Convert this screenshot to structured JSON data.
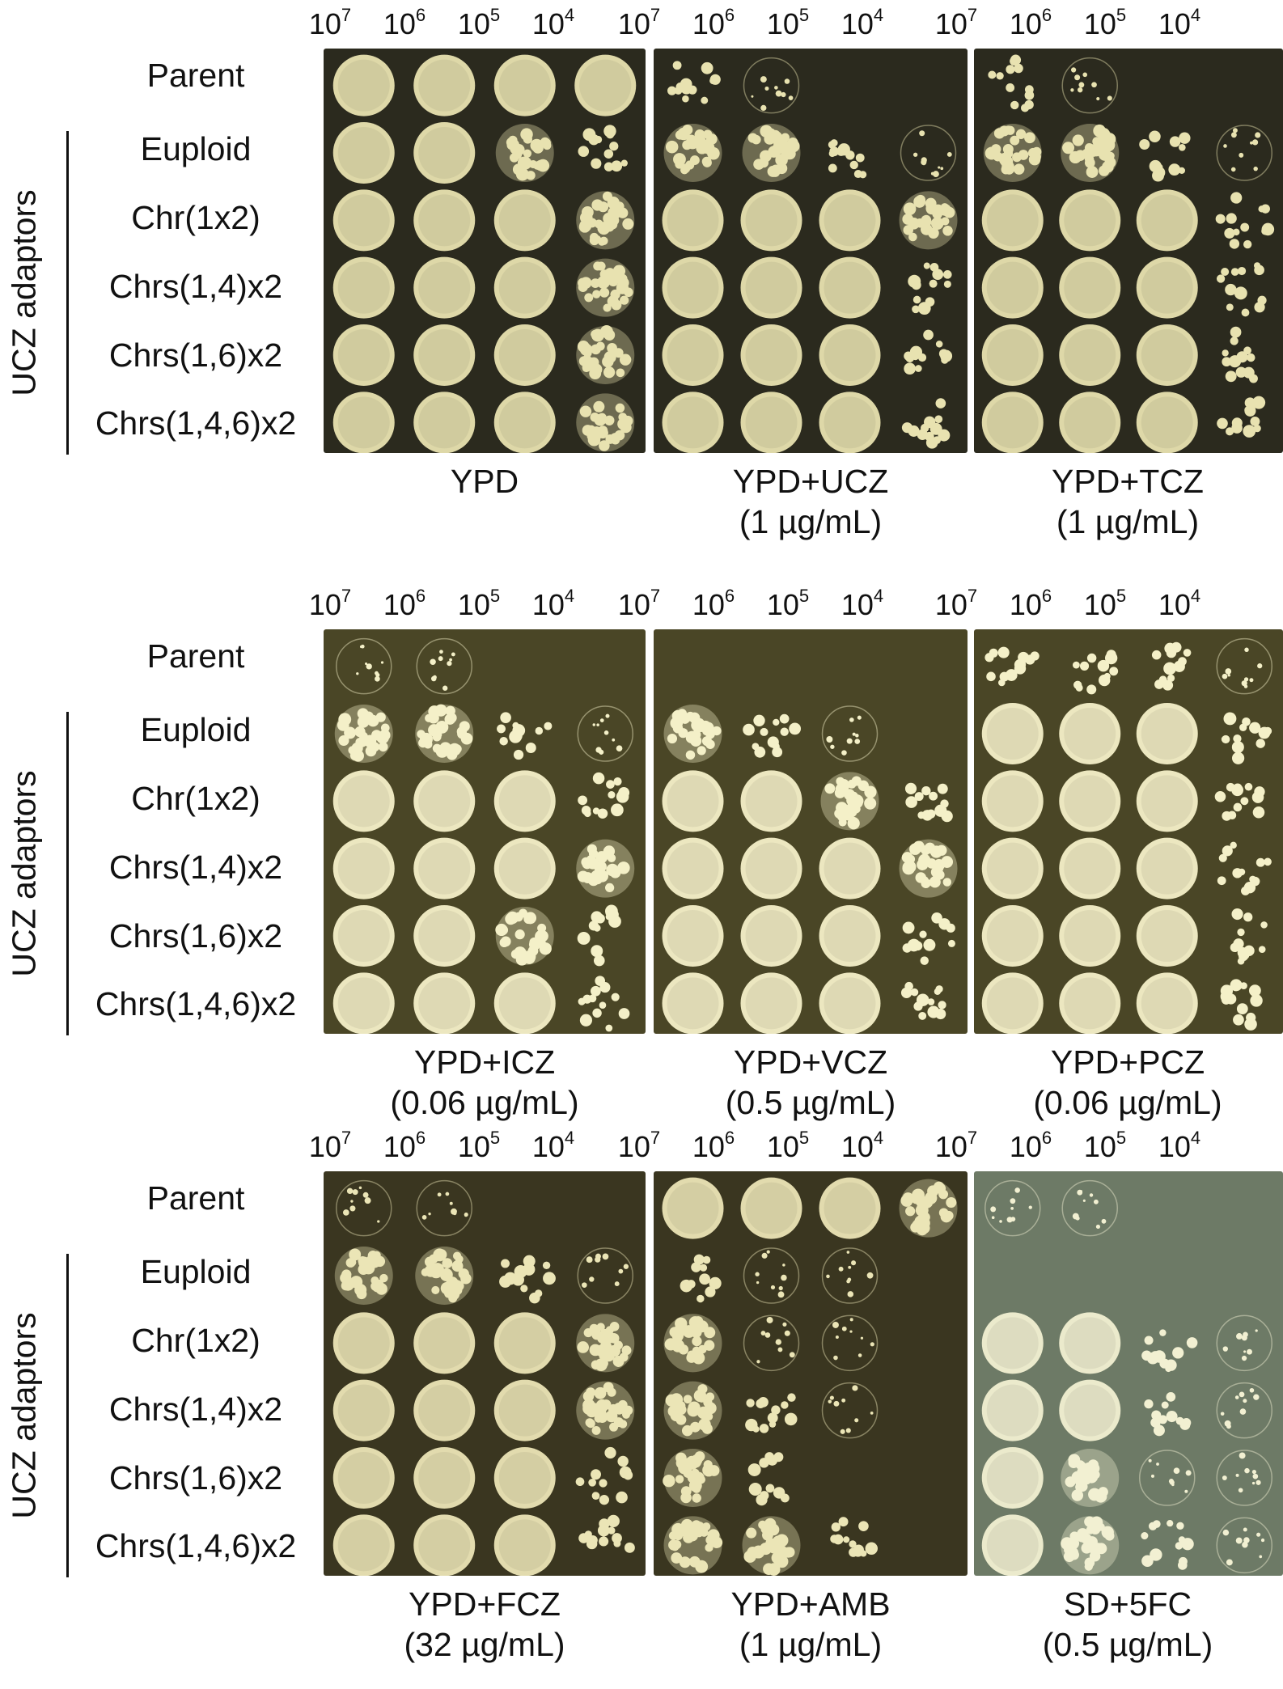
{
  "dilution_labels": [
    {
      "base": "10",
      "exp": "7"
    },
    {
      "base": "10",
      "exp": "6"
    },
    {
      "base": "10",
      "exp": "5"
    },
    {
      "base": "10",
      "exp": "4"
    }
  ],
  "strains": [
    "Parent",
    "Euploid",
    "Chr(1x2)",
    "Chrs(1,4)x2",
    "Chrs(1,6)x2",
    "Chrs(1,4,6)x2"
  ],
  "group_label": "UCZ adaptors",
  "panels": [
    {
      "plates": [
        {
          "line1": "YPD",
          "line2": "",
          "bg": "#2b2a1e",
          "spot": "#e8e2b0",
          "growth": [
            [
              4,
              4,
              4,
              4
            ],
            [
              4,
              4,
              3,
              2
            ],
            [
              4,
              4,
              4,
              3
            ],
            [
              4,
              4,
              4,
              3
            ],
            [
              4,
              4,
              4,
              3
            ],
            [
              4,
              4,
              4,
              3
            ]
          ]
        },
        {
          "line1": "YPD+UCZ",
          "line2": "(1 µg/mL)",
          "bg": "#2b2a1e",
          "spot": "#e8e2b0",
          "growth": [
            [
              2,
              1,
              0,
              0
            ],
            [
              3,
              3,
              2,
              1
            ],
            [
              4,
              4,
              4,
              3
            ],
            [
              4,
              4,
              4,
              2
            ],
            [
              4,
              4,
              4,
              2
            ],
            [
              4,
              4,
              4,
              2
            ]
          ]
        },
        {
          "line1": "YPD+TCZ",
          "line2": "(1 µg/mL)",
          "bg": "#2b2a1e",
          "spot": "#e8e2b0",
          "growth": [
            [
              2,
              1,
              0,
              0
            ],
            [
              3,
              3,
              2,
              1
            ],
            [
              4,
              4,
              4,
              2
            ],
            [
              4,
              4,
              4,
              2
            ],
            [
              4,
              4,
              4,
              2
            ],
            [
              4,
              4,
              4,
              2
            ]
          ]
        }
      ]
    },
    {
      "plates": [
        {
          "line1": "YPD+ICZ",
          "line2": "(0.06 µg/mL)",
          "bg": "#4a4626",
          "spot": "#f4f0c8",
          "growth": [
            [
              1,
              1,
              0,
              0
            ],
            [
              3,
              3,
              2,
              1
            ],
            [
              4,
              4,
              4,
              2
            ],
            [
              4,
              4,
              4,
              3
            ],
            [
              4,
              4,
              3,
              2
            ],
            [
              4,
              4,
              4,
              2
            ]
          ]
        },
        {
          "line1": "YPD+VCZ",
          "line2": "(0.5 µg/mL)",
          "bg": "#4a4626",
          "spot": "#f4f0c8",
          "growth": [
            [
              0,
              0,
              0,
              0
            ],
            [
              3,
              2,
              1,
              0
            ],
            [
              4,
              4,
              3,
              2
            ],
            [
              4,
              4,
              4,
              3
            ],
            [
              4,
              4,
              4,
              2
            ],
            [
              4,
              4,
              4,
              2
            ]
          ]
        },
        {
          "line1": "YPD+PCZ",
          "line2": "(0.06 µg/mL)",
          "bg": "#4a4626",
          "spot": "#f4f0c8",
          "growth": [
            [
              2,
              2,
              2,
              1
            ],
            [
              4,
              4,
              4,
              2
            ],
            [
              4,
              4,
              4,
              2
            ],
            [
              4,
              4,
              4,
              2
            ],
            [
              4,
              4,
              4,
              2
            ],
            [
              4,
              4,
              4,
              2
            ]
          ]
        }
      ]
    },
    {
      "plates": [
        {
          "line1": "YPD+FCZ",
          "line2": "(32 µg/mL)",
          "bg": "#3a3620",
          "spot": "#ebe5b6",
          "growth": [
            [
              1,
              1,
              0,
              0
            ],
            [
              3,
              3,
              2,
              1
            ],
            [
              4,
              4,
              4,
              3
            ],
            [
              4,
              4,
              4,
              3
            ],
            [
              4,
              4,
              4,
              2
            ],
            [
              4,
              4,
              4,
              2
            ]
          ]
        },
        {
          "line1": "YPD+AMB",
          "line2": "(1 µg/mL)",
          "bg": "#3a3620",
          "spot": "#ebe5b6",
          "growth": [
            [
              4,
              4,
              4,
              3
            ],
            [
              2,
              1,
              1,
              0
            ],
            [
              3,
              1,
              1,
              0
            ],
            [
              3,
              2,
              1,
              0
            ],
            [
              3,
              2,
              0,
              0
            ],
            [
              3,
              3,
              2,
              0
            ]
          ]
        },
        {
          "line1": "SD+5FC",
          "line2": "(0.5 µg/mL)",
          "bg": "#6d7a66",
          "spot": "#f2f0d2",
          "growth": [
            [
              1,
              1,
              0,
              0
            ],
            [
              0,
              0,
              0,
              0
            ],
            [
              4,
              4,
              2,
              1
            ],
            [
              4,
              4,
              2,
              1
            ],
            [
              4,
              3,
              1,
              1
            ],
            [
              4,
              3,
              2,
              1
            ]
          ]
        }
      ]
    }
  ]
}
